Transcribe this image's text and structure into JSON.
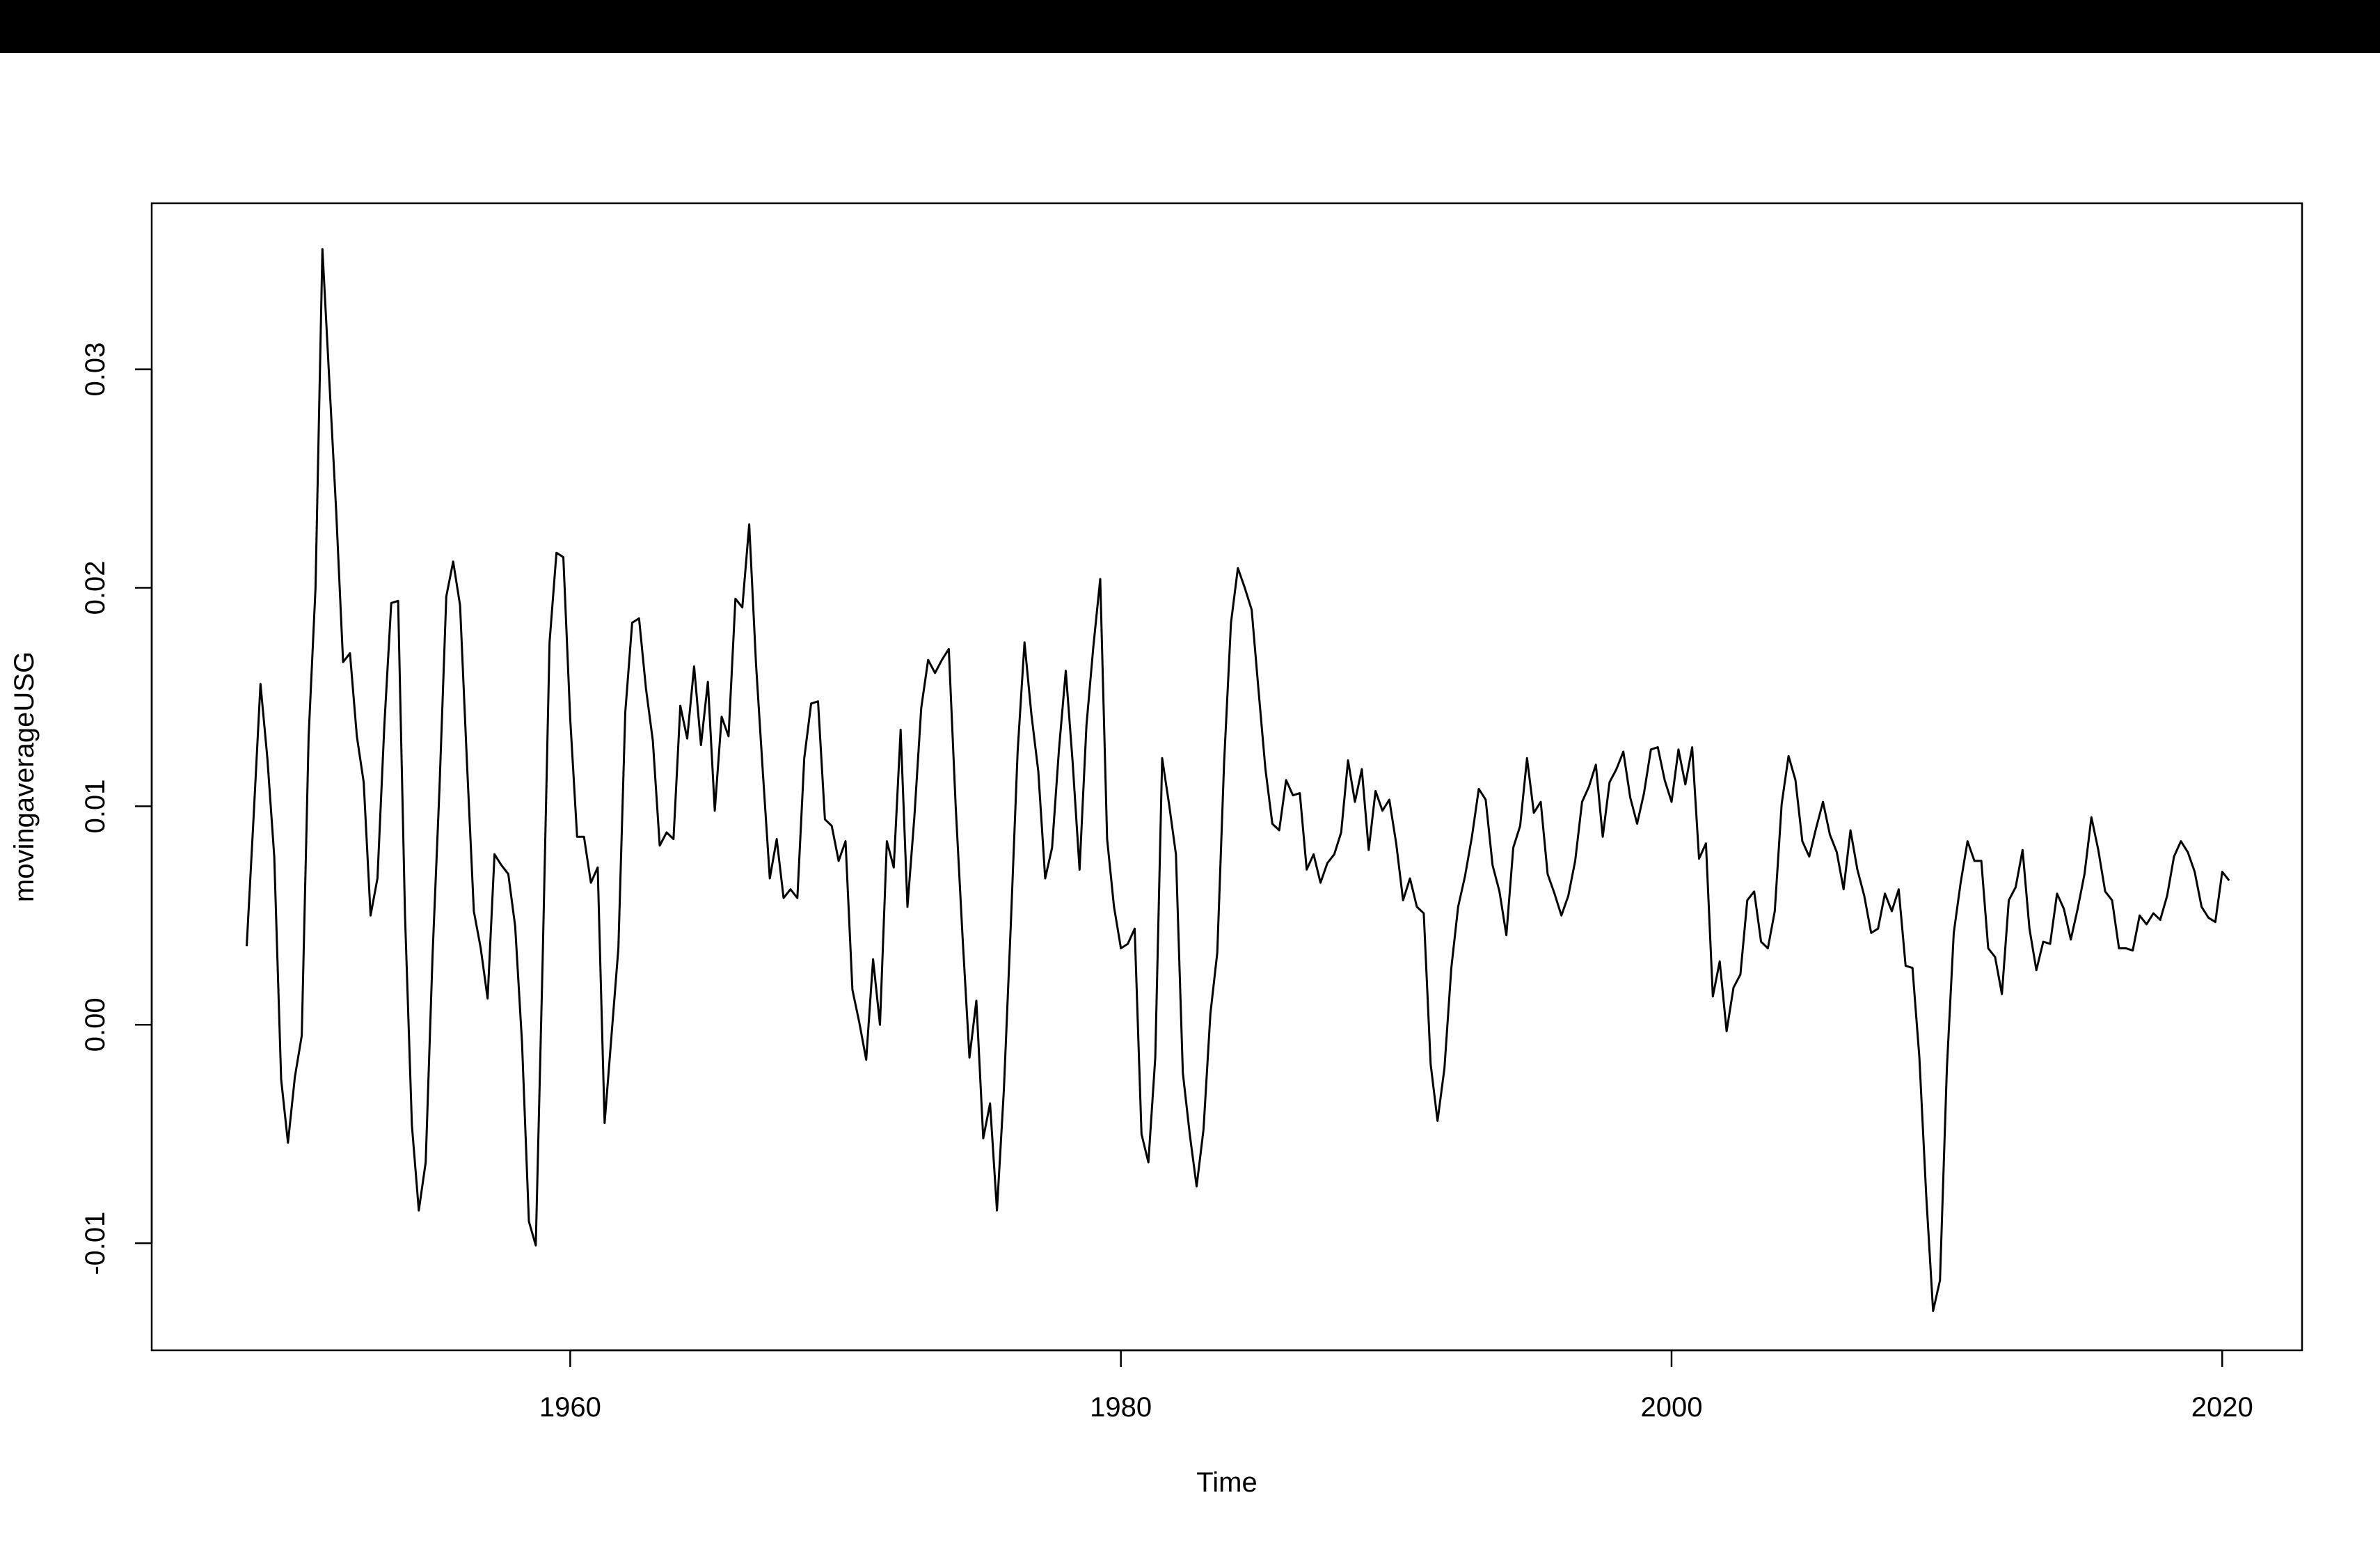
{
  "chart_data": {
    "type": "line",
    "title": "",
    "xlabel": "Time",
    "ylabel": "movingaverageUSG",
    "xlim": [
      1944.8,
      2022.9
    ],
    "ylim": [
      -0.0149,
      0.0376
    ],
    "x_start": 1948.25,
    "x_step": 0.25,
    "xticks": [
      1960,
      1980,
      2000,
      2020
    ],
    "xtick_labels": [
      "1960",
      "1980",
      "2000",
      "2020"
    ],
    "yticks": [
      -0.01,
      0.0,
      0.01,
      0.02,
      0.03
    ],
    "ytick_labels": [
      "-0.01",
      "0.00",
      "0.01",
      "0.02",
      "0.03"
    ],
    "grid": false,
    "legend": "none",
    "line_color": "#000000",
    "series": [
      {
        "values": [
          0.0036,
          0.0095,
          0.0156,
          0.0122,
          0.0077,
          -0.0025,
          -0.0054,
          -0.0024,
          -0.0005,
          0.0132,
          0.02,
          0.0355,
          0.0295,
          0.0235,
          0.0166,
          0.017,
          0.0132,
          0.0111,
          0.005,
          0.0067,
          0.0137,
          0.0193,
          0.0194,
          0.005,
          -0.0046,
          -0.0085,
          -0.0063,
          0.0032,
          0.0108,
          0.0196,
          0.0212,
          0.0192,
          0.012,
          0.0052,
          0.0035,
          0.0012,
          0.0078,
          0.0073,
          0.0069,
          0.0045,
          -0.0008,
          -0.009,
          -0.0101,
          0.003,
          0.0175,
          0.0216,
          0.0214,
          0.014,
          0.0086,
          0.0086,
          0.0065,
          0.0072,
          -0.0045,
          -0.0005,
          0.0035,
          0.0143,
          0.0184,
          0.0186,
          0.0154,
          0.013,
          0.0082,
          0.0088,
          0.0085,
          0.0146,
          0.0131,
          0.0164,
          0.0128,
          0.0157,
          0.0098,
          0.0141,
          0.0132,
          0.0195,
          0.0191,
          0.0229,
          0.0165,
          0.0115,
          0.0067,
          0.0085,
          0.0058,
          0.0062,
          0.0058,
          0.0122,
          0.0147,
          0.0148,
          0.0094,
          0.0091,
          0.0075,
          0.0084,
          0.0016,
          0.0001,
          -0.0016,
          0.003,
          0.0,
          0.0084,
          0.0072,
          0.0135,
          0.0054,
          0.0095,
          0.0145,
          0.0167,
          0.0161,
          0.0167,
          0.0172,
          0.01,
          0.004,
          -0.0015,
          0.0011,
          -0.0052,
          -0.0036,
          -0.0085,
          -0.003,
          0.0045,
          0.0125,
          0.0175,
          0.0142,
          0.0116,
          0.0067,
          0.0081,
          0.0126,
          0.0162,
          0.012,
          0.0071,
          0.0137,
          0.0173,
          0.0204,
          0.0085,
          0.0054,
          0.0035,
          0.0037,
          0.0044,
          -0.005,
          -0.0063,
          -0.0015,
          0.0122,
          0.0101,
          0.0078,
          -0.0022,
          -0.005,
          -0.0074,
          -0.0048,
          0.0005,
          0.0033,
          0.012,
          0.0184,
          0.0209,
          0.02,
          0.019,
          0.0153,
          0.0117,
          0.0092,
          0.0089,
          0.0112,
          0.0105,
          0.0106,
          0.0071,
          0.0078,
          0.0065,
          0.0074,
          0.0078,
          0.0088,
          0.0121,
          0.0102,
          0.0117,
          0.008,
          0.0107,
          0.0098,
          0.0103,
          0.0083,
          0.0057,
          0.0067,
          0.0054,
          0.0051,
          -0.0018,
          -0.0044,
          -0.002,
          0.0026,
          0.0054,
          0.0068,
          0.0086,
          0.0108,
          0.0103,
          0.0073,
          0.0061,
          0.0041,
          0.0081,
          0.0091,
          0.0122,
          0.0097,
          0.0102,
          0.0069,
          0.006,
          0.005,
          0.0059,
          0.0075,
          0.0102,
          0.0109,
          0.0119,
          0.0086,
          0.0111,
          0.0117,
          0.0125,
          0.0104,
          0.0092,
          0.0106,
          0.0126,
          0.0127,
          0.0112,
          0.0102,
          0.0126,
          0.011,
          0.0127,
          0.0076,
          0.0083,
          0.0013,
          0.0029,
          -0.0003,
          0.0017,
          0.0023,
          0.0057,
          0.0061,
          0.0038,
          0.0035,
          0.0052,
          0.0101,
          0.0123,
          0.0112,
          0.0084,
          0.0077,
          0.009,
          0.0102,
          0.0087,
          0.0079,
          0.0062,
          0.0089,
          0.0071,
          0.0059,
          0.0042,
          0.0044,
          0.006,
          0.0052,
          0.0062,
          0.0027,
          0.0026,
          -0.0015,
          -0.0078,
          -0.0131,
          -0.0117,
          -0.002,
          0.0042,
          0.0065,
          0.0084,
          0.0075,
          0.0075,
          0.0035,
          0.0031,
          0.0014,
          0.0057,
          0.0063,
          0.008,
          0.0044,
          0.0025,
          0.0038,
          0.0037,
          0.006,
          0.0053,
          0.0039,
          0.0053,
          0.0069,
          0.0095,
          0.008,
          0.0061,
          0.0057,
          0.0035,
          0.0035,
          0.0034,
          0.005,
          0.0046,
          0.0051,
          0.0048,
          0.0059,
          0.0077,
          0.0084,
          0.0079,
          0.007,
          0.0054,
          0.0049,
          0.0047,
          0.007,
          0.0066
        ]
      }
    ]
  }
}
